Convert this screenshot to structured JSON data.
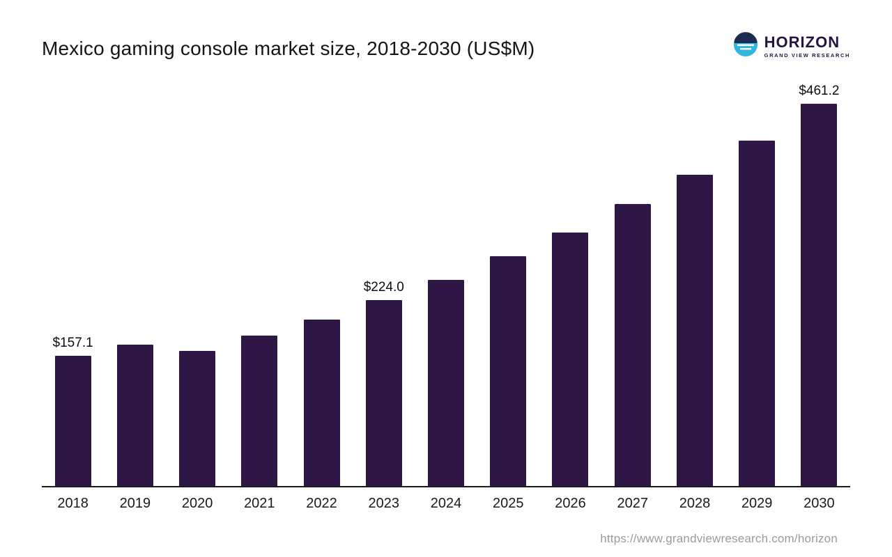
{
  "header": {
    "title": "Mexico gaming console market size, 2018-2030 (US$M)"
  },
  "logo": {
    "brand": "HORIZON",
    "subtitle": "GRAND VIEW RESEARCH",
    "icon": "horizon-circle-icon",
    "brand_color": "#241442",
    "icon_color": "#2fb7dd"
  },
  "footer": {
    "url": "https://www.grandviewresearch.com/horizon"
  },
  "chart_data": {
    "type": "bar",
    "title": "Mexico gaming console market size, 2018-2030 (US$M)",
    "categories": [
      "2018",
      "2019",
      "2020",
      "2021",
      "2022",
      "2023",
      "2024",
      "2025",
      "2026",
      "2027",
      "2028",
      "2029",
      "2030"
    ],
    "values": [
      157.1,
      170.2,
      162.4,
      181.3,
      200.8,
      224.0,
      248.3,
      276.5,
      305.2,
      340.1,
      375.4,
      416.3,
      461.2
    ],
    "value_labels": {
      "2018": "$157.1",
      "2023": "$224.0",
      "2030": "$461.2"
    },
    "bar_color": "#2e1745",
    "xlabel": "",
    "ylabel": "",
    "ylim": [
      0,
      485
    ],
    "grid": false,
    "legend": false,
    "y_axis_visible": false,
    "x_axis_visible": true
  }
}
